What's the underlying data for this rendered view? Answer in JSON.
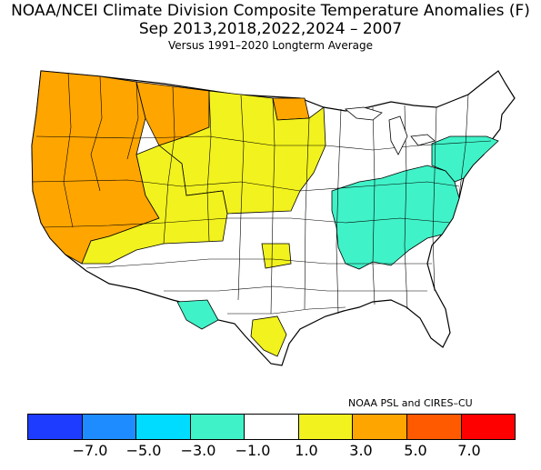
{
  "header": {
    "title": "NOAA/NCEI Climate Division Composite Temperature Anomalies (F)",
    "subtitle": "Sep  2013,2018,2022,2024 – 2007",
    "baseline": "Versus 1991–2020 Longterm Average"
  },
  "credit": "NOAA PSL and CIRES–CU",
  "legend": {
    "bins": [
      {
        "color": "#1e3cff"
      },
      {
        "color": "#1e8cff"
      },
      {
        "color": "#00dcff"
      },
      {
        "color": "#40f2c8"
      },
      {
        "color": "#ffffff"
      },
      {
        "color": "#f2f21e"
      },
      {
        "color": "#ffa500"
      },
      {
        "color": "#ff5a00"
      },
      {
        "color": "#ff0000"
      }
    ],
    "ticks": [
      "−7.0",
      "−5.0",
      "−3.0",
      "−1.0",
      "1.0",
      "3.0",
      "5.0",
      "7.0"
    ]
  },
  "regions": {
    "pacific_northwest": {
      "category": "3.0 to 5.0",
      "color": "#ffa500"
    },
    "california_great_basin": {
      "category": "3.0 to 5.0",
      "color": "#ffa500"
    },
    "northern_rockies_montana": {
      "category": "3.0 to 5.0",
      "color": "#ffa500"
    },
    "northern_plains": {
      "category": "1.0 to 3.0",
      "color": "#f2f21e"
    },
    "central_rockies": {
      "category": "1.0 to 3.0",
      "color": "#f2f21e"
    },
    "southwest": {
      "category": "1.0 to 3.0",
      "color": "#f2f21e"
    },
    "ohio_tennessee_valley": {
      "category": "-3.0 to -1.0",
      "color": "#40f2c8"
    },
    "mid_atlantic": {
      "category": "-3.0 to -1.0",
      "color": "#40f2c8"
    },
    "west_texas": {
      "category": "-3.0 to -1.0",
      "color": "#40f2c8"
    },
    "south_central_texas": {
      "category": "1.0 to 3.0",
      "color": "#f2f21e"
    },
    "oklahoma_pocket": {
      "category": "1.0 to 3.0",
      "color": "#f2f21e"
    },
    "remainder": {
      "category": "-1.0 to 1.0",
      "color": "#ffffff"
    }
  }
}
